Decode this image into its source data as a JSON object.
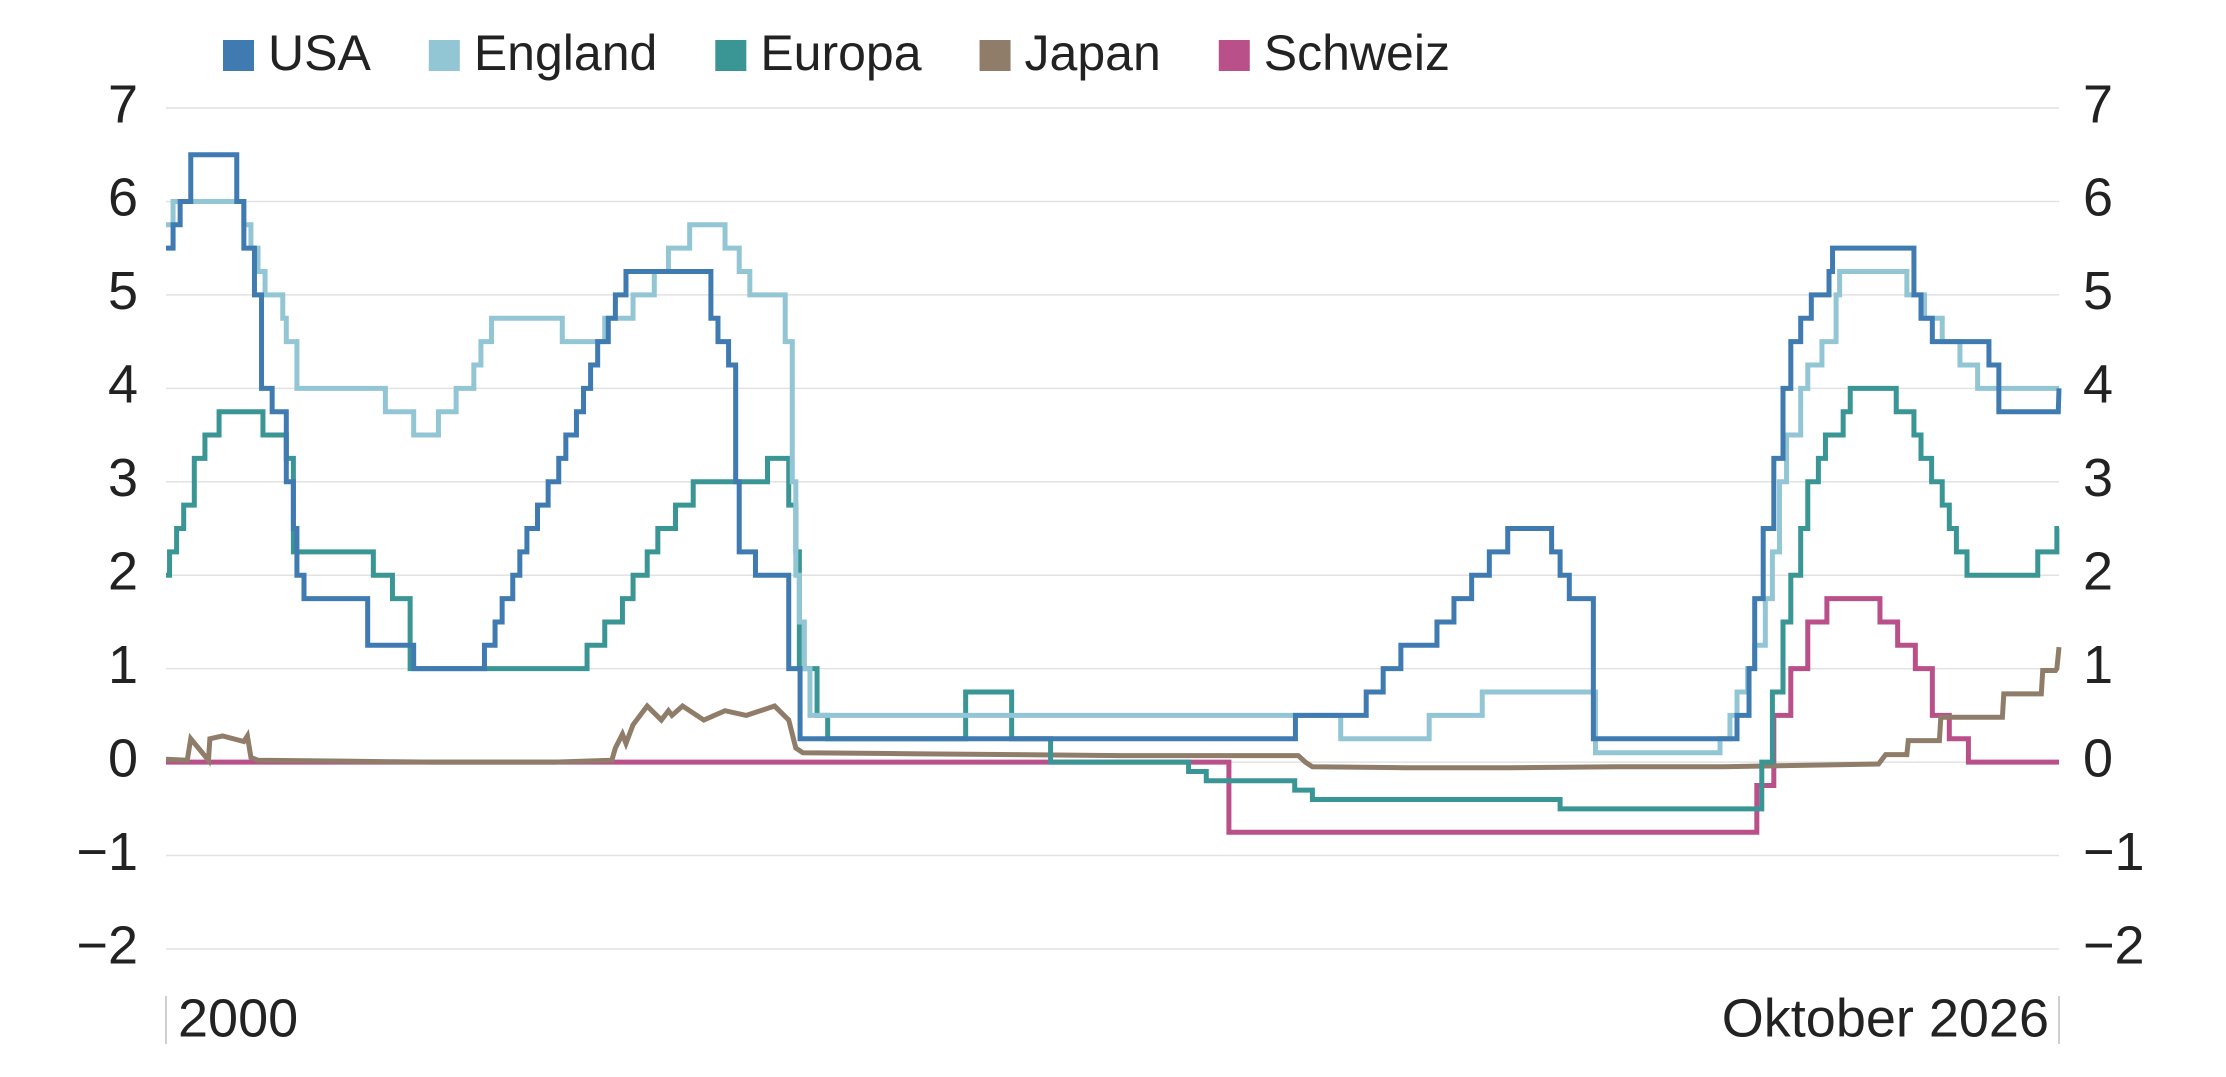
{
  "chart_data": {
    "type": "line",
    "xlim": [
      2000,
      2026.75
    ],
    "xticks": [
      {
        "value": 2000,
        "label": "2000"
      },
      {
        "value": 2026.75,
        "label": "Oktober 2026"
      }
    ],
    "ylim": [
      -2,
      7
    ],
    "yticks": [
      {
        "value": -2,
        "label": "−2"
      },
      {
        "value": -1,
        "label": "−1"
      },
      0,
      1,
      2,
      3,
      4,
      5,
      6,
      7
    ],
    "grid": true,
    "legend": "top",
    "series": [
      {
        "name": "USA",
        "color": "#3f7bb0",
        "x": [
          2000,
          2000.1,
          2000.1,
          2000.2,
          2000.2,
          2000.35,
          2000.35,
          2001,
          2001,
          2001.1,
          2001.1,
          2001.25,
          2001.25,
          2001.35,
          2001.35,
          2001.5,
          2001.5,
          2001.7,
          2001.7,
          2001.8,
          2001.8,
          2001.85,
          2001.85,
          2001.95,
          2001.95,
          2002.85,
          2002.85,
          2003.5,
          2003.5,
          2004.5,
          2004.5,
          2004.65,
          2004.65,
          2004.75,
          2004.75,
          2004.9,
          2004.9,
          2005,
          2005,
          2005.1,
          2005.1,
          2005.25,
          2005.25,
          2005.4,
          2005.4,
          2005.55,
          2005.55,
          2005.65,
          2005.65,
          2005.8,
          2005.8,
          2005.9,
          2005.9,
          2006,
          2006,
          2006.1,
          2006.1,
          2006.25,
          2006.25,
          2006.35,
          2006.35,
          2006.5,
          2006.5,
          2007.7,
          2007.7,
          2007.8,
          2007.8,
          2007.95,
          2007.95,
          2008.05,
          2008.05,
          2008.1,
          2008.1,
          2008.33,
          2008.33,
          2008.8,
          2008.8,
          2008.96,
          2008.96,
          2015.96,
          2015.96,
          2016.96,
          2016.96,
          2017.2,
          2017.2,
          2017.45,
          2017.45,
          2017.96,
          2017.96,
          2018.2,
          2018.2,
          2018.45,
          2018.45,
          2018.7,
          2018.7,
          2018.96,
          2018.96,
          2019.58,
          2019.58,
          2019.7,
          2019.7,
          2019.83,
          2019.83,
          2020.17,
          2020.17,
          2022.2,
          2022.2,
          2022.37,
          2022.37,
          2022.45,
          2022.45,
          2022.57,
          2022.57,
          2022.72,
          2022.72,
          2022.85,
          2022.85,
          2022.96,
          2022.96,
          2023.1,
          2023.1,
          2023.25,
          2023.25,
          2023.5,
          2023.5,
          2023.55,
          2023.55,
          2024.7,
          2024.7,
          2024.8,
          2024.8,
          2024.96,
          2024.96,
          2025.76,
          2025.76,
          2025.9,
          2025.9,
          2026.74,
          2026.75
        ],
        "values": [
          5.5,
          5.5,
          5.75,
          5.75,
          6,
          6,
          6.5,
          6.5,
          6,
          6,
          5.5,
          5.5,
          5,
          5,
          4,
          4,
          3.75,
          3.75,
          3,
          3,
          2.5,
          2.5,
          2,
          2,
          1.75,
          1.75,
          1.25,
          1.25,
          1,
          1,
          1.25,
          1.25,
          1.5,
          1.5,
          1.75,
          1.75,
          2,
          2,
          2.25,
          2.25,
          2.5,
          2.5,
          2.75,
          2.75,
          3,
          3,
          3.25,
          3.25,
          3.5,
          3.5,
          3.75,
          3.75,
          4,
          4,
          4.25,
          4.25,
          4.5,
          4.5,
          4.75,
          4.75,
          5,
          5,
          5.25,
          5.25,
          4.75,
          4.75,
          4.5,
          4.5,
          4.25,
          4.25,
          3,
          3,
          2.25,
          2.25,
          2,
          2,
          1,
          1,
          0.25,
          0.25,
          0.5,
          0.5,
          0.75,
          0.75,
          1,
          1,
          1.25,
          1.25,
          1.5,
          1.5,
          1.75,
          1.75,
          2,
          2,
          2.25,
          2.25,
          2.5,
          2.5,
          2.25,
          2.25,
          2,
          2,
          1.75,
          1.75,
          0.25,
          0.25,
          0.5,
          0.5,
          1,
          1,
          1.75,
          1.75,
          2.5,
          2.5,
          3.25,
          3.25,
          4,
          4,
          4.5,
          4.5,
          4.75,
          4.75,
          5,
          5,
          5.25,
          5.25,
          5.5,
          5.5,
          5,
          5,
          4.75,
          4.75,
          4.5,
          4.5,
          4.25,
          4.25,
          3.75,
          3.75,
          4
        ]
      },
      {
        "name": "England",
        "color": "#93c6d4",
        "x": [
          2000,
          2000.1,
          2000.1,
          2001.1,
          2001.1,
          2001.2,
          2001.2,
          2001.3,
          2001.3,
          2001.4,
          2001.4,
          2001.65,
          2001.65,
          2001.7,
          2001.7,
          2001.85,
          2001.85,
          2003.1,
          2003.1,
          2003.5,
          2003.5,
          2003.85,
          2003.85,
          2004.1,
          2004.1,
          2004.35,
          2004.35,
          2004.45,
          2004.45,
          2004.6,
          2004.6,
          2005.6,
          2005.6,
          2006.2,
          2006.2,
          2006.6,
          2006.6,
          2006.9,
          2006.9,
          2007.1,
          2007.1,
          2007.4,
          2007.4,
          2007.9,
          2007.9,
          2008.1,
          2008.1,
          2008.25,
          2008.25,
          2008.75,
          2008.75,
          2008.85,
          2008.85,
          2008.9,
          2008.9,
          2008.95,
          2008.95,
          2009.02,
          2009.02,
          2009.1,
          2009.1,
          2016.6,
          2016.6,
          2017.85,
          2017.85,
          2018.6,
          2018.6,
          2020.2,
          2020.2,
          2021.96,
          2021.96,
          2022.1,
          2022.1,
          2022.2,
          2022.2,
          2022.35,
          2022.35,
          2022.45,
          2022.45,
          2022.6,
          2022.6,
          2022.7,
          2022.7,
          2022.8,
          2022.8,
          2022.9,
          2022.9,
          2023.1,
          2023.1,
          2023.2,
          2023.2,
          2023.4,
          2023.4,
          2023.6,
          2023.6,
          2023.65,
          2023.65,
          2024.6,
          2024.6,
          2024.85,
          2024.85,
          2025.1,
          2025.1,
          2025.35,
          2025.35,
          2025.6,
          2025.6,
          2026.75
        ],
        "values": [
          5.75,
          5.75,
          6,
          6,
          5.75,
          5.75,
          5.5,
          5.5,
          5.25,
          5.25,
          5,
          5,
          4.75,
          4.75,
          4.5,
          4.5,
          4,
          4,
          3.75,
          3.75,
          3.5,
          3.5,
          3.75,
          3.75,
          4,
          4,
          4.25,
          4.25,
          4.5,
          4.5,
          4.75,
          4.75,
          4.5,
          4.5,
          4.75,
          4.75,
          5,
          5,
          5.25,
          5.25,
          5.5,
          5.5,
          5.75,
          5.75,
          5.5,
          5.5,
          5.25,
          5.25,
          5,
          5,
          4.5,
          4.5,
          3,
          3,
          2,
          2,
          1.5,
          1.5,
          1,
          1,
          0.5,
          0.5,
          0.25,
          0.25,
          0.5,
          0.5,
          0.75,
          0.75,
          0.1,
          0.1,
          0.25,
          0.25,
          0.5,
          0.5,
          0.75,
          0.75,
          1,
          1,
          1.25,
          1.25,
          1.75,
          1.75,
          2.25,
          2.25,
          3,
          3,
          3.5,
          3.5,
          4,
          4,
          4.25,
          4.25,
          4.5,
          4.5,
          5,
          5,
          5.25,
          5.25,
          5,
          5,
          4.75,
          4.75,
          4.5,
          4.5,
          4.25,
          4.25,
          4,
          4
        ]
      },
      {
        "name": "Europa",
        "color": "#3a9694",
        "x": [
          2000,
          2000.05,
          2000.05,
          2000.15,
          2000.15,
          2000.25,
          2000.25,
          2000.4,
          2000.4,
          2000.55,
          2000.55,
          2000.75,
          2000.75,
          2001.37,
          2001.37,
          2001.7,
          2001.7,
          2001.8,
          2001.8,
          2002.93,
          2002.93,
          2003.2,
          2003.2,
          2003.45,
          2003.45,
          2005.95,
          2005.95,
          2006.2,
          2006.2,
          2006.45,
          2006.45,
          2006.6,
          2006.6,
          2006.8,
          2006.8,
          2006.95,
          2006.95,
          2007.2,
          2007.2,
          2007.45,
          2007.45,
          2008.5,
          2008.5,
          2008.8,
          2008.8,
          2008.9,
          2008.9,
          2008.95,
          2008.95,
          2009.2,
          2009.2,
          2009.35,
          2009.35,
          2011.3,
          2011.3,
          2011.95,
          2011.95,
          2012.5,
          2012.5,
          2014.45,
          2014.45,
          2014.7,
          2014.7,
          2015.95,
          2015.95,
          2016.2,
          2016.2,
          2019.7,
          2019.7,
          2022.55,
          2022.55,
          2022.7,
          2022.7,
          2022.85,
          2022.85,
          2022.96,
          2022.96,
          2023.1,
          2023.1,
          2023.2,
          2023.2,
          2023.35,
          2023.35,
          2023.45,
          2023.45,
          2023.7,
          2023.7,
          2023.8,
          2023.8,
          2024.45,
          2024.45,
          2024.7,
          2024.7,
          2024.8,
          2024.8,
          2024.95,
          2024.95,
          2025.1,
          2025.1,
          2025.2,
          2025.2,
          2025.3,
          2025.3,
          2025.45,
          2025.45,
          2026.45,
          2026.45,
          2026.72,
          2026.72,
          2026.75
        ],
        "values": [
          2,
          2,
          2.25,
          2.25,
          2.5,
          2.5,
          2.75,
          2.75,
          3.25,
          3.25,
          3.5,
          3.5,
          3.75,
          3.75,
          3.5,
          3.5,
          3.25,
          3.25,
          2.25,
          2.25,
          2,
          2,
          1.75,
          1.75,
          1,
          1,
          1.25,
          1.25,
          1.5,
          1.5,
          1.75,
          1.75,
          2,
          2,
          2.25,
          2.25,
          2.5,
          2.5,
          2.75,
          2.75,
          3,
          3,
          3.25,
          3.25,
          2.75,
          2.75,
          2.25,
          2.25,
          1,
          1,
          0.5,
          0.5,
          0.25,
          0.25,
          0.75,
          0.75,
          0.25,
          0.25,
          0,
          0,
          -0.1,
          -0.1,
          -0.2,
          -0.2,
          -0.3,
          -0.3,
          -0.4,
          -0.4,
          -0.5,
          -0.5,
          0,
          0,
          0.75,
          0.75,
          1.5,
          1.5,
          2,
          2,
          2.5,
          2.5,
          3,
          3,
          3.25,
          3.25,
          3.5,
          3.5,
          3.75,
          3.75,
          4,
          4,
          3.75,
          3.75,
          3.5,
          3.5,
          3.25,
          3.25,
          3,
          3,
          2.75,
          2.75,
          2.5,
          2.5,
          2.25,
          2.25,
          2,
          2,
          2.25,
          2.25,
          2.5,
          2.5
        ]
      },
      {
        "name": "Japan",
        "color": "#8f7d6a",
        "x": [
          2000,
          2000.3,
          2000.35,
          2000.6,
          2000.62,
          2000.8,
          2001.1,
          2001.15,
          2001.2,
          2001.3,
          2002.5,
          2003.8,
          2005.5,
          2006.3,
          2006.35,
          2006.45,
          2006.5,
          2006.6,
          2006.8,
          2007.0,
          2007.1,
          2007.15,
          2007.3,
          2007.6,
          2007.9,
          2008.2,
          2008.6,
          2008.8,
          2008.85,
          2008.9,
          2009.0,
          2010.5,
          2012.0,
          2013.5,
          2015.0,
          2016.0,
          2016.1,
          2016.2,
          2017.5,
          2019.0,
          2020.5,
          2022.0,
          2023.5,
          2024.2,
          2024.3,
          2024.6,
          2024.62,
          2025.06,
          2025.08,
          2025.95,
          2025.97,
          2026.5,
          2026.52,
          2026.7,
          2026.72,
          2026.75
        ],
        "values": [
          0.03,
          0.02,
          0.25,
          0.02,
          0.25,
          0.28,
          0.22,
          0.28,
          0.05,
          0.02,
          0.01,
          0,
          0,
          0.02,
          0.15,
          0.3,
          0.2,
          0.4,
          0.6,
          0.45,
          0.55,
          0.5,
          0.6,
          0.45,
          0.55,
          0.5,
          0.6,
          0.45,
          0.3,
          0.15,
          0.1,
          0.09,
          0.08,
          0.07,
          0.07,
          0.07,
          0,
          -0.05,
          -0.06,
          -0.06,
          -0.05,
          -0.05,
          -0.03,
          -0.02,
          0.08,
          0.08,
          0.23,
          0.23,
          0.48,
          0.48,
          0.73,
          0.73,
          0.98,
          0.98,
          1,
          1.23
        ]
      },
      {
        "name": "Schweiz",
        "color": "#b9508a",
        "x": [
          2000,
          2015.02,
          2015.02,
          2022.48,
          2022.48,
          2022.72,
          2022.72,
          2022.96,
          2022.96,
          2023.2,
          2023.2,
          2023.47,
          2023.47,
          2024.22,
          2024.22,
          2024.47,
          2024.47,
          2024.72,
          2024.72,
          2024.96,
          2024.96,
          2025.2,
          2025.2,
          2025.47,
          2025.47,
          2026.75
        ],
        "values": [
          0,
          0,
          -0.75,
          -0.75,
          -0.25,
          -0.25,
          0.5,
          0.5,
          1,
          1,
          1.5,
          1.5,
          1.75,
          1.75,
          1.5,
          1.5,
          1.25,
          1.25,
          1,
          1,
          0.5,
          0.5,
          0.25,
          0.25,
          0,
          0
        ]
      }
    ]
  }
}
